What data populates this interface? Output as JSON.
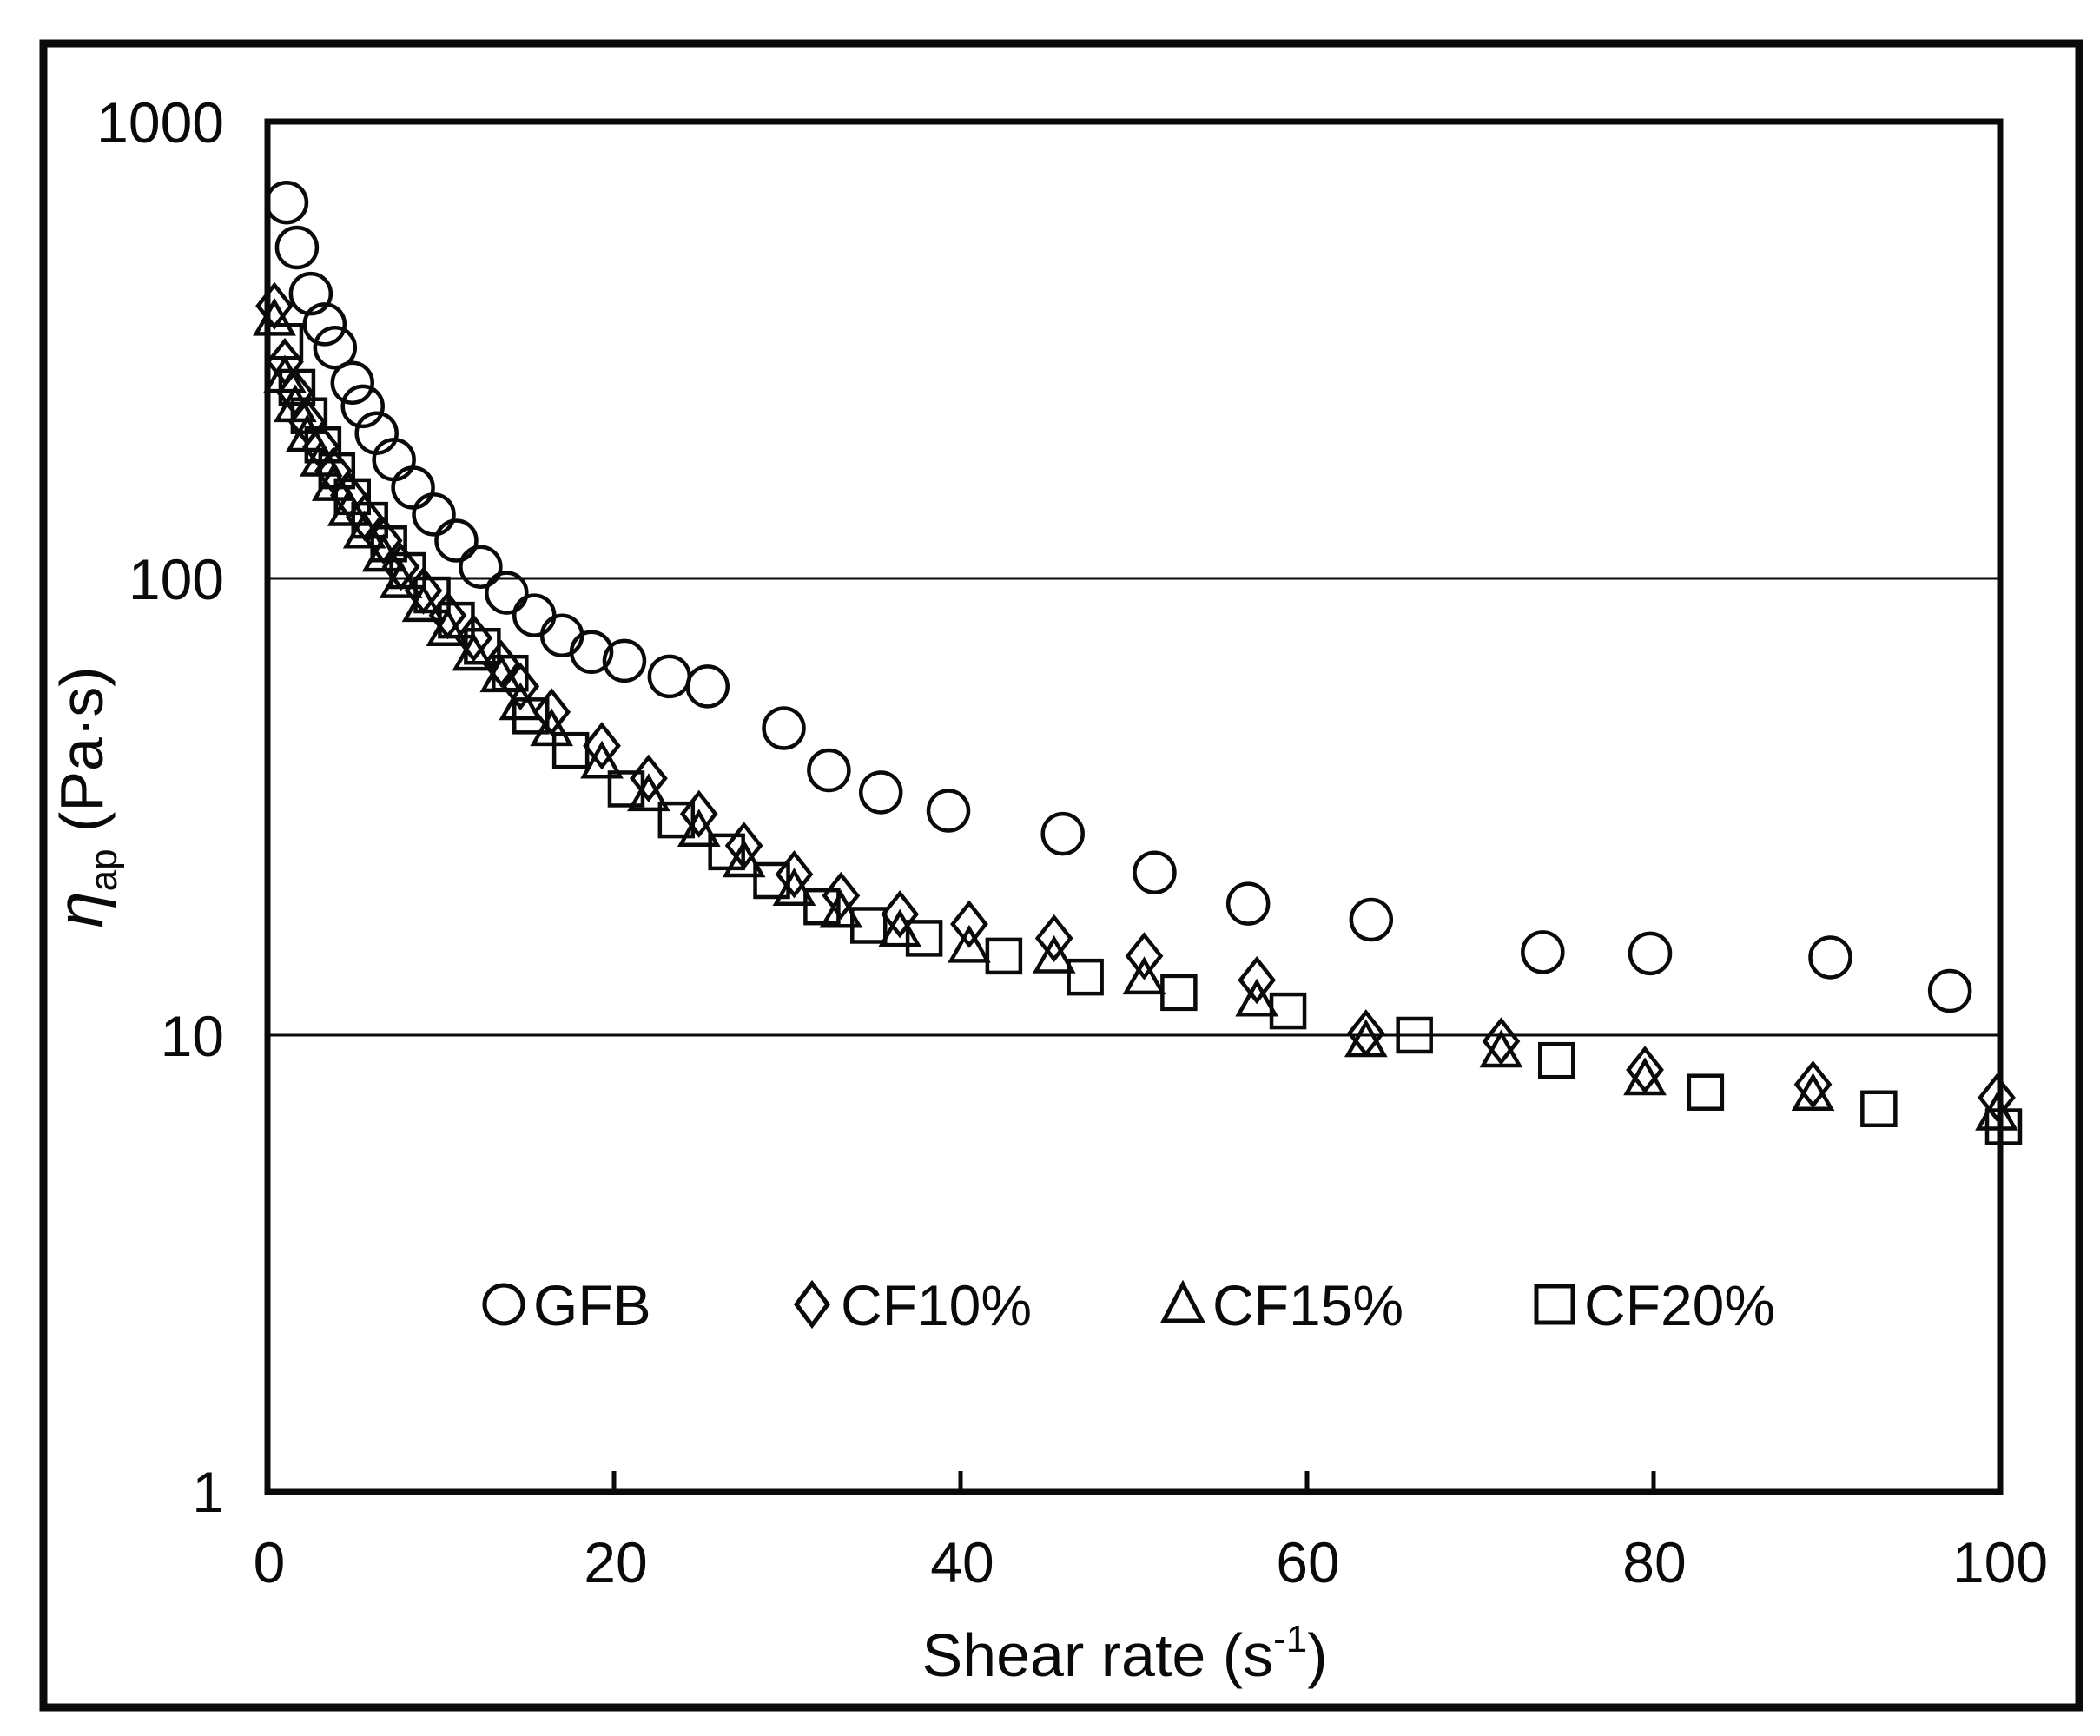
{
  "axes": {
    "x": {
      "title_main": "Shear rate (s",
      "title_sup": "-1",
      "title_close": ")",
      "ticks": [
        "0",
        "20",
        "40",
        "60",
        "80",
        "100"
      ],
      "min": 0,
      "max": 100
    },
    "y": {
      "title_eta": "η",
      "title_sub": "ap",
      "title_rest": " (Pa·s)",
      "ticks": [
        "1000",
        "100",
        "10",
        "1"
      ],
      "scale": "log",
      "min": 1,
      "max": 1000
    }
  },
  "legend": {
    "items": [
      {
        "marker": "circle",
        "label": "GFB"
      },
      {
        "marker": "diamond",
        "label": "CF10%"
      },
      {
        "marker": "triangle",
        "label": "CF15%"
      },
      {
        "marker": "square",
        "label": "CF20%"
      }
    ]
  },
  "colors": {
    "ink": "#0a0a0a",
    "background": "#ffffff"
  },
  "chart_data": {
    "type": "scatter",
    "title": "",
    "xlabel": "Shear rate (s⁻¹)",
    "ylabel": "ηap (Pa·s)",
    "x_range": [
      0,
      100
    ],
    "y_range": [
      1,
      1000
    ],
    "y_scale": "log",
    "gridlines_y": [
      100,
      10
    ],
    "x_tick_values": [
      0,
      20,
      40,
      60,
      80,
      100
    ],
    "legend_position": "inside-bottom",
    "series": [
      {
        "name": "GFB",
        "marker": "circle",
        "x": [
          1.1,
          1.7,
          2.5,
          3.3,
          3.9,
          4.9,
          5.5,
          6.3,
          7.3,
          8.4,
          9.6,
          10.9,
          12.3,
          13.8,
          15.4,
          17.0,
          18.7,
          20.6,
          23.2,
          25.4,
          29.8,
          32.4,
          35.4,
          39.3,
          45.9,
          51.2,
          56.6,
          63.7,
          73.6,
          79.8,
          90.2,
          97.1
        ],
        "y": [
          665,
          530,
          420,
          360,
          320,
          268,
          238,
          208,
          182,
          158,
          138,
          121,
          106,
          93,
          83,
          75,
          69,
          66,
          61,
          58,
          47,
          38,
          34,
          31,
          27.6,
          22.7,
          19.4,
          17.9,
          15.2,
          15.1,
          14.8,
          12.5
        ]
      },
      {
        "name": "CF10%",
        "marker": "diamond",
        "x": [
          0.4,
          1.0,
          1.6,
          2.3,
          3.1,
          3.8,
          4.7,
          5.6,
          6.7,
          7.7,
          9.0,
          10.4,
          11.9,
          13.5,
          14.6,
          16.4,
          19.3,
          22.0,
          24.9,
          27.5,
          30.4,
          33.1,
          36.5,
          40.5,
          45.4,
          50.6,
          57.1,
          63.4,
          71.2,
          79.5,
          89.2,
          99.8
        ],
        "y": [
          395,
          298,
          255,
          220,
          194,
          172,
          152,
          136,
          121,
          106,
          94,
          83,
          74,
          65,
          58,
          51,
          43,
          36.5,
          30.5,
          26,
          22.5,
          20.2,
          18.4,
          17.5,
          16.3,
          14.9,
          13.2,
          10.1,
          9.7,
          8.4,
          7.8,
          7.3
        ]
      },
      {
        "name": "CF15%",
        "marker": "triangle",
        "x": [
          0.4,
          1.0,
          1.6,
          2.3,
          3.1,
          3.8,
          4.7,
          5.6,
          6.7,
          7.7,
          9.0,
          10.4,
          11.9,
          13.5,
          14.6,
          16.4,
          19.3,
          22.0,
          24.9,
          27.5,
          30.4,
          33.1,
          36.5,
          40.5,
          45.4,
          50.6,
          57.1,
          63.4,
          71.2,
          79.5,
          89.2,
          99.8
        ],
        "y": [
          368,
          276,
          238,
          205,
          181,
          160,
          141,
          126,
          112,
          98,
          87,
          77,
          68,
          61,
          53,
          46.5,
          39.5,
          33.5,
          28,
          24,
          20.8,
          18.6,
          16.9,
          15.6,
          14.8,
          13.3,
          11.9,
          9.7,
          9.2,
          8.0,
          7.4,
          6.7
        ]
      },
      {
        "name": "CF20%",
        "marker": "square",
        "x": [
          1.0,
          1.7,
          2.4,
          3.2,
          4.0,
          4.9,
          5.9,
          7.0,
          8.1,
          9.5,
          10.9,
          12.4,
          14.0,
          15.2,
          17.5,
          20.7,
          23.6,
          26.5,
          29.1,
          32.0,
          34.7,
          37.9,
          42.5,
          47.2,
          52.6,
          58.9,
          66.2,
          74.4,
          83.0,
          93.0,
          100.2
        ],
        "y": [
          330,
          262,
          227,
          196,
          172,
          151,
          134,
          119,
          104,
          92,
          81,
          71,
          62,
          50,
          42,
          34.6,
          29.6,
          25.2,
          21.8,
          19.1,
          17.4,
          16.3,
          14.9,
          13.4,
          12.4,
          11.3,
          10.0,
          8.8,
          7.5,
          6.9,
          6.3
        ]
      }
    ]
  }
}
